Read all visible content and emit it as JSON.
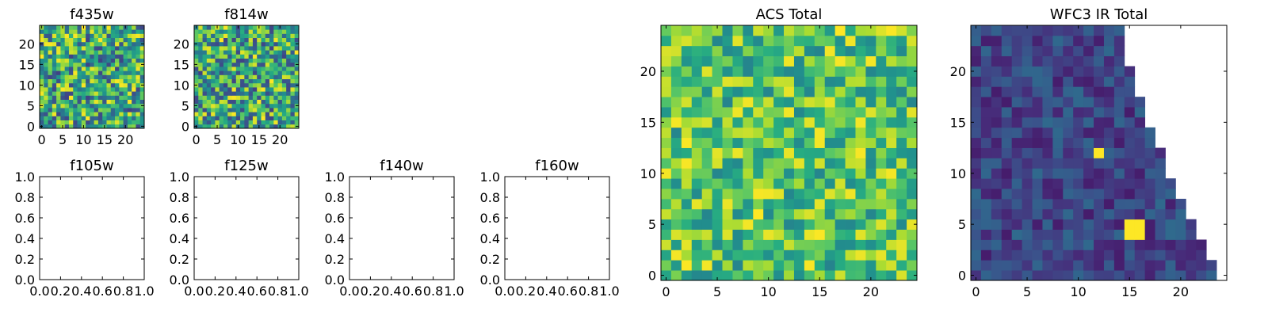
{
  "colormap": "viridis",
  "chart_data": [
    {
      "id": "f435w",
      "type": "heatmap",
      "title": "f435w",
      "xlim": [
        -0.5,
        24.5
      ],
      "ylim": [
        -0.5,
        24.5
      ],
      "xticks": [
        0,
        5,
        10,
        15,
        20
      ],
      "yticks": [
        0,
        5,
        10,
        15,
        20
      ],
      "grid": [
        25,
        25
      ],
      "value_range": [
        0,
        1
      ],
      "seed": 11,
      "profile": "uniform"
    },
    {
      "id": "f814w",
      "type": "heatmap",
      "title": "f814w",
      "xlim": [
        -0.5,
        24.5
      ],
      "ylim": [
        -0.5,
        24.5
      ],
      "xticks": [
        0,
        5,
        10,
        15,
        20
      ],
      "yticks": [
        0,
        5,
        10,
        15,
        20
      ],
      "grid": [
        25,
        25
      ],
      "value_range": [
        0,
        1
      ],
      "seed": 23,
      "profile": "uniform"
    },
    {
      "id": "f105w",
      "type": "scatter",
      "title": "f105w",
      "xlim": [
        0,
        1
      ],
      "ylim": [
        0,
        1
      ],
      "xticks": [
        "0.0",
        "0.2",
        "0.4",
        "0.6",
        "0.8",
        "1.0"
      ],
      "yticks": [
        "0.0",
        "0.2",
        "0.4",
        "0.6",
        "0.8",
        "1.0"
      ],
      "series": []
    },
    {
      "id": "f125w",
      "type": "scatter",
      "title": "f125w",
      "xlim": [
        0,
        1
      ],
      "ylim": [
        0,
        1
      ],
      "xticks": [
        "0.0",
        "0.2",
        "0.4",
        "0.6",
        "0.8",
        "1.0"
      ],
      "yticks": [
        "0.0",
        "0.2",
        "0.4",
        "0.6",
        "0.8",
        "1.0"
      ],
      "series": []
    },
    {
      "id": "f140w",
      "type": "scatter",
      "title": "f140w",
      "xlim": [
        0,
        1
      ],
      "ylim": [
        0,
        1
      ],
      "xticks": [
        "0.0",
        "0.2",
        "0.4",
        "0.6",
        "0.8",
        "1.0"
      ],
      "yticks": [
        "0.0",
        "0.2",
        "0.4",
        "0.6",
        "0.8",
        "1.0"
      ],
      "series": []
    },
    {
      "id": "f160w",
      "type": "scatter",
      "title": "f160w",
      "xlim": [
        0,
        1
      ],
      "ylim": [
        0,
        1
      ],
      "xticks": [
        "0.0",
        "0.2",
        "0.4",
        "0.6",
        "0.8",
        "1.0"
      ],
      "yticks": [
        "0.0",
        "0.2",
        "0.4",
        "0.6",
        "0.8",
        "1.0"
      ],
      "series": []
    },
    {
      "id": "acs_total",
      "type": "heatmap",
      "title": "ACS Total",
      "xlim": [
        -0.5,
        24.5
      ],
      "ylim": [
        -0.5,
        24.5
      ],
      "xticks": [
        0,
        5,
        10,
        15,
        20
      ],
      "yticks": [
        0,
        5,
        10,
        15,
        20
      ],
      "grid": [
        25,
        25
      ],
      "value_range": [
        0,
        1
      ],
      "seed": 37,
      "profile": "bright"
    },
    {
      "id": "wfc3_ir_total",
      "type": "heatmap",
      "title": "WFC3 IR Total",
      "xlim": [
        -0.5,
        24.5
      ],
      "ylim": [
        -0.5,
        24.5
      ],
      "xticks": [
        0,
        5,
        10,
        15,
        20
      ],
      "yticks": [
        0,
        5,
        10,
        15,
        20
      ],
      "grid": [
        25,
        25
      ],
      "value_range": [
        0,
        1
      ],
      "seed": 51,
      "profile": "dim",
      "row_extent": [
        23,
        23,
        22,
        22,
        21,
        21,
        20,
        20,
        19,
        19,
        18,
        18,
        18,
        17,
        17,
        16,
        16,
        16,
        15,
        15,
        15,
        14,
        14,
        14,
        14
      ],
      "bright_sources": [
        {
          "x": 15,
          "y": 4
        },
        {
          "x": 16,
          "y": 4
        },
        {
          "x": 15,
          "y": 5
        },
        {
          "x": 16,
          "y": 5
        },
        {
          "x": 12,
          "y": 12
        }
      ]
    }
  ]
}
